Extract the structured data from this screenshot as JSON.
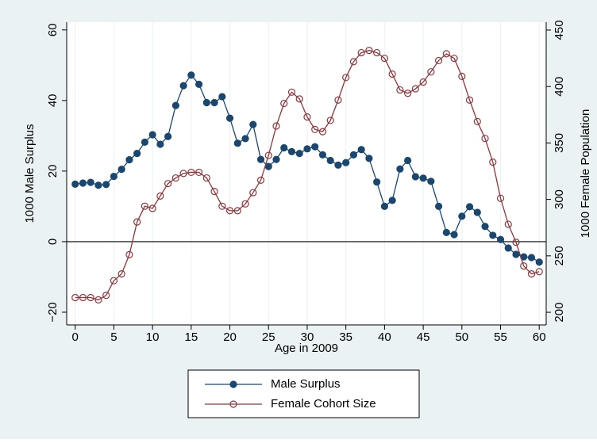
{
  "chart_data": {
    "type": "line",
    "x_label": "Age in 2009",
    "y_label": "1000 Male Surplus",
    "y2_label": "1000 Female Population",
    "x": [
      0,
      1,
      2,
      3,
      4,
      5,
      6,
      7,
      8,
      9,
      10,
      11,
      12,
      13,
      14,
      15,
      16,
      17,
      18,
      19,
      20,
      21,
      22,
      23,
      24,
      25,
      26,
      27,
      28,
      29,
      30,
      31,
      32,
      33,
      34,
      35,
      36,
      37,
      38,
      39,
      40,
      41,
      42,
      43,
      44,
      45,
      46,
      47,
      48,
      49,
      50,
      51,
      52,
      53,
      54,
      55,
      56,
      57,
      58,
      59,
      60
    ],
    "series": [
      {
        "name": "Male Surplus",
        "color": "#1a476f",
        "marker": "filled",
        "values": [
          16.3,
          16.6,
          16.8,
          16,
          16.2,
          18.5,
          20.5,
          23.2,
          25,
          28.2,
          30.3,
          27.6,
          29.8,
          38.6,
          44.2,
          47.2,
          44.6,
          39.4,
          39.4,
          41.1,
          35,
          27.9,
          29.2,
          33.2,
          23.3,
          21.3,
          23.3,
          26.6,
          25.5,
          25,
          26.3,
          26.9,
          24.6,
          23,
          21.7,
          22.4,
          24.6,
          26.1,
          23.6,
          16.9,
          10,
          11.7,
          20.6,
          23,
          18.4,
          18,
          17.1,
          10,
          2.6,
          2,
          7.2,
          9.9,
          8.3,
          4.3,
          1.8,
          0.6,
          -1.8,
          -3.6,
          -4.3,
          -4.5,
          -5.8
        ]
      },
      {
        "name": "Female Cohort Size",
        "color": "#90353b",
        "marker": "hollow",
        "axis": "y2",
        "values": [
          213,
          213,
          213,
          211,
          215,
          228,
          234,
          251,
          280,
          294,
          292,
          303,
          314,
          319,
          323,
          324,
          324,
          319,
          307,
          294,
          290,
          290,
          296,
          306,
          317,
          339,
          365,
          385,
          395,
          389,
          373,
          362,
          360,
          370,
          388,
          408,
          422,
          430,
          432,
          430,
          425,
          411,
          397,
          394,
          398,
          404,
          413,
          423,
          429,
          425,
          409,
          388,
          369,
          354,
          333,
          301,
          278,
          262,
          241,
          234,
          236
        ]
      }
    ],
    "xlim": [
      -1.1,
      60.9
    ],
    "xticks": [
      0,
      5,
      10,
      15,
      20,
      25,
      30,
      35,
      40,
      45,
      50,
      55,
      60
    ],
    "ylim": [
      -23.6,
      62.2
    ],
    "yticks": [
      {
        "value": -20,
        "label": "−20"
      },
      0,
      20,
      40,
      60
    ],
    "y2lim": [
      188.8,
      457
    ],
    "y2ticks": [
      200,
      250,
      300,
      350,
      400,
      450
    ],
    "yline": 0,
    "grid": true,
    "legend": "bottom"
  }
}
